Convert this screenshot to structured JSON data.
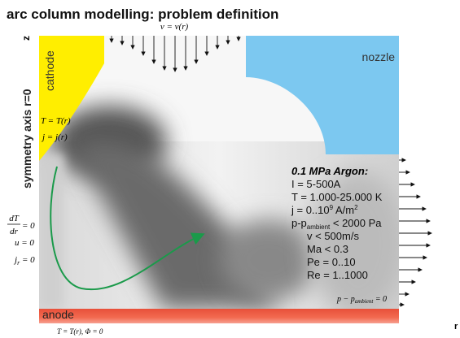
{
  "header": {
    "title": "arc column modelling: problem definition"
  },
  "axes": {
    "z": "z",
    "r": "r",
    "symmetry": "symmetry axis r=0"
  },
  "regions": {
    "cathode": "cathode",
    "nozzle": "nozzle",
    "anode": "anode"
  },
  "cathode_bc": {
    "T": "T = T(r)",
    "j": "j = j(r)"
  },
  "inlet_bc": "v = v(r)",
  "left_bc": {
    "num": "dT",
    "den": "dr",
    "eq": "= 0",
    "u": "u = 0",
    "j": "j",
    "j_sub": "r",
    "j_eq": " = 0"
  },
  "anode_bc": "T = T(r), Φ = 0",
  "outlet_bc": {
    "p": "p − p",
    "sub": "ambient",
    "eq": " = 0"
  },
  "params": {
    "heading": "0.1 MPa Argon:",
    "current": "I = 5-500A",
    "temperature": "T = 1.000-25.000 K",
    "j": [
      "j = 0..10",
      "9",
      " A/m",
      "2"
    ],
    "pressure": [
      "p-p",
      "ambient",
      " < 2000 Pa"
    ],
    "velocity": "v < 500m/s",
    "mach": "Ma < 0.3",
    "peclet": "Pe = 0..10",
    "reynolds": "Re = 1..1000"
  }
}
